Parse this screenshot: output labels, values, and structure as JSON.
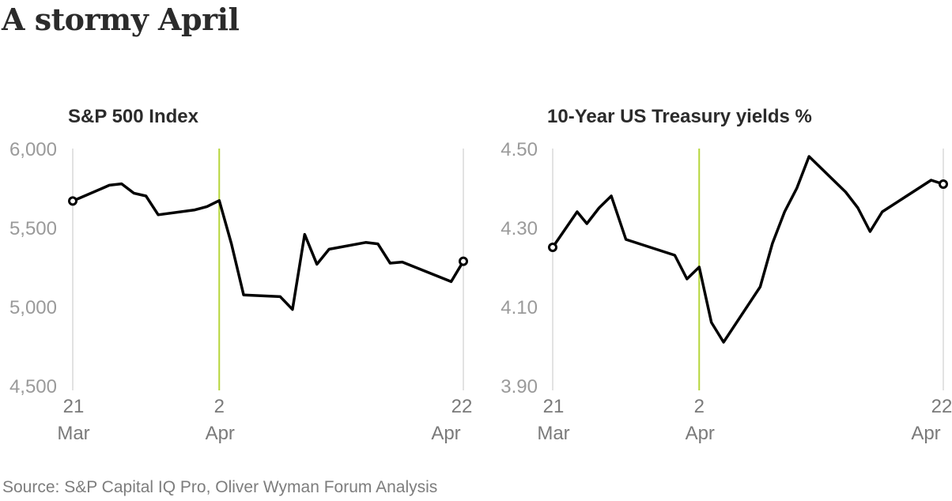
{
  "title": "A stormy April",
  "source": "Source: S&P Capital IQ Pro, Oliver Wyman Forum Analysis",
  "colors": {
    "line": "#000000",
    "highlight": "#b6d63a",
    "grid": "#d9d9d9"
  },
  "chart_data": [
    {
      "type": "line",
      "title": "S&P 500 Index",
      "ylim": [
        4500,
        6000
      ],
      "y_ticks": [
        "6,000",
        "5,500",
        "5,000",
        "4,500"
      ],
      "y_tick_values": [
        6000,
        5500,
        5000,
        4500
      ],
      "x_ticks": [
        {
          "day": 0,
          "line1": "21",
          "line2": "Mar"
        },
        {
          "day": 12,
          "line1": "2",
          "line2": "Apr"
        },
        {
          "day": 32,
          "line1": "22",
          "line2": "Apr"
        }
      ],
      "highlight_day": 12,
      "grid": true,
      "x": [
        0,
        3,
        4,
        5,
        6,
        7,
        10,
        11,
        12,
        13,
        14,
        17,
        18,
        19,
        20,
        21,
        24,
        25,
        26,
        27,
        31,
        32
      ],
      "values": [
        5668,
        5768,
        5777,
        5718,
        5700,
        5581,
        5612,
        5633,
        5671,
        5397,
        5074,
        5063,
        4982,
        5457,
        5268,
        5363,
        5406,
        5397,
        5275,
        5282,
        5158,
        5287
      ]
    },
    {
      "type": "line",
      "title": "10-Year US Treasury yields %",
      "ylim": [
        3.9,
        4.5
      ],
      "y_ticks": [
        "4.50",
        "4.30",
        "4.10",
        "3.90"
      ],
      "y_tick_values": [
        4.5,
        4.3,
        4.1,
        3.9
      ],
      "x_ticks": [
        {
          "day": 0,
          "line1": "21",
          "line2": "Mar"
        },
        {
          "day": 12,
          "line1": "2",
          "line2": "Apr"
        },
        {
          "day": 32,
          "line1": "22",
          "line2": "Apr"
        }
      ],
      "highlight_day": 12,
      "grid": true,
      "x": [
        0,
        2,
        2.8,
        3.8,
        4.8,
        6,
        10,
        11,
        12,
        13,
        14,
        17,
        18,
        19,
        20,
        21,
        24,
        25,
        26,
        27,
        31,
        32
      ],
      "values": [
        4.25,
        4.34,
        4.31,
        4.35,
        4.38,
        4.27,
        4.23,
        4.17,
        4.2,
        4.06,
        4.01,
        4.15,
        4.26,
        4.34,
        4.4,
        4.48,
        4.39,
        4.35,
        4.29,
        4.34,
        4.42,
        4.41
      ]
    }
  ]
}
